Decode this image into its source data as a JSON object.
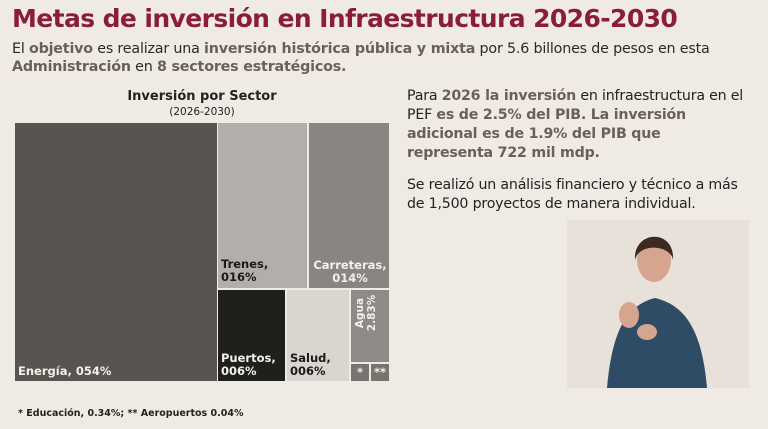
{
  "slide": {
    "title": "Metas de inversión en Infraestructura 2026-2030",
    "subtitle_parts": [
      "El ",
      "objetivo",
      " es realizar una ",
      "inversión histórica pública y mixta",
      " por 5.6 billones de pesos en esta ",
      "Administración",
      " en ",
      "8 sectores estratégicos."
    ],
    "paragraph1_parts": [
      "Para ",
      "2026 la inversión",
      " en infraestructura en el PEF ",
      "es de 2.5% del PIB. La inversión adicional es de 1.9% del PIB que representa 722 mil mdp."
    ],
    "paragraph2": "Se realizó un análisis financiero y técnico a más de 1,500 proyectos de manera individual.",
    "footnote": "* Educación, 0.34%; ** Aeropuertos 0.04%"
  },
  "chart_data": {
    "type": "treemap",
    "title": "Inversión por Sector",
    "subtitle": "(2026-2030)",
    "items": [
      {
        "name": "Energía",
        "label": "Energía, 054%",
        "value": 54,
        "color": "#58544f"
      },
      {
        "name": "Trenes",
        "label": "Trenes, 016%",
        "value": 16,
        "color": "#b3aea9"
      },
      {
        "name": "Carreteras",
        "label": "Carreteras, 014%",
        "value": 14,
        "color": "#8a8580"
      },
      {
        "name": "Puertos",
        "label": "Puertos, 006%",
        "value": 6,
        "color": "#1f1f1c"
      },
      {
        "name": "Salud",
        "label": "Salud, 006%",
        "value": 6,
        "color": "#d9d5cf"
      },
      {
        "name": "Agua",
        "label": "Agua 2.83%",
        "value": 2.83,
        "color": "#8e8a85"
      },
      {
        "name": "Educación",
        "label": "*",
        "value": 0.34,
        "color": "#77736e"
      },
      {
        "name": "Aeropuertos",
        "label": "**",
        "value": 0.04,
        "color": "#77736e"
      }
    ]
  }
}
